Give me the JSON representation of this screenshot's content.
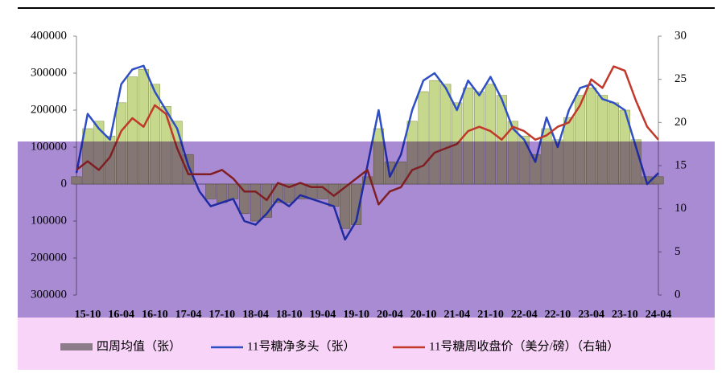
{
  "chart_data": {
    "type": "bar-line",
    "categories": [
      "15-10",
      null,
      null,
      "16-04",
      null,
      null,
      "16-10",
      null,
      null,
      "17-04",
      null,
      null,
      "17-10",
      null,
      null,
      "18-04",
      null,
      null,
      "18-10",
      null,
      null,
      "19-04",
      null,
      null,
      "19-10",
      null,
      null,
      "20-04",
      null,
      null,
      "20-10",
      null,
      null,
      "21-04",
      null,
      null,
      "21-10",
      null,
      null,
      "22-04",
      null,
      null,
      "22-10",
      null,
      null,
      "23-04",
      null,
      null,
      "23-10",
      null,
      null,
      "24-04",
      null
    ],
    "series": [
      {
        "name": "四周均值（张）",
        "type": "bar",
        "color": "#c5d88c",
        "axis": "y",
        "values": [
          20000,
          150000,
          170000,
          130000,
          220000,
          290000,
          310000,
          270000,
          210000,
          170000,
          80000,
          0,
          -40000,
          -50000,
          -40000,
          -80000,
          -100000,
          -90000,
          -50000,
          -50000,
          -40000,
          -40000,
          -40000,
          -60000,
          -120000,
          -110000,
          20000,
          150000,
          60000,
          60000,
          170000,
          250000,
          280000,
          270000,
          220000,
          260000,
          250000,
          270000,
          240000,
          170000,
          130000,
          80000,
          150000,
          120000,
          180000,
          240000,
          260000,
          240000,
          220000,
          200000,
          120000,
          20000,
          20000
        ]
      },
      {
        "name": "11号糖净多头（张）",
        "type": "line",
        "color": "#2f4fc4",
        "axis": "y",
        "values": [
          30000,
          190000,
          150000,
          120000,
          270000,
          310000,
          320000,
          250000,
          200000,
          150000,
          50000,
          -20000,
          -60000,
          -50000,
          -40000,
          -100000,
          -110000,
          -80000,
          -40000,
          -60000,
          -30000,
          -40000,
          -50000,
          -60000,
          -150000,
          -100000,
          50000,
          200000,
          20000,
          80000,
          200000,
          280000,
          300000,
          260000,
          200000,
          280000,
          240000,
          290000,
          230000,
          150000,
          120000,
          60000,
          180000,
          100000,
          200000,
          260000,
          270000,
          230000,
          220000,
          200000,
          100000,
          0,
          30000
        ]
      },
      {
        "name": "11号糖周收盘价（美分/磅）（右轴）",
        "type": "line",
        "color": "#c0392b",
        "axis": "y2",
        "values": [
          14.5,
          15.5,
          14.5,
          16,
          19,
          20.5,
          19.5,
          22,
          21,
          17,
          14,
          14,
          14,
          14.5,
          13.5,
          12,
          12,
          11,
          13,
          12.5,
          13,
          12.5,
          12.5,
          11.5,
          12.5,
          13.5,
          14.5,
          10.5,
          12,
          12.5,
          14.5,
          15,
          16.5,
          17,
          17.5,
          19,
          19.5,
          19,
          18,
          19.5,
          19,
          18,
          18.5,
          19.5,
          20,
          22,
          25,
          24,
          26.5,
          26,
          22.5,
          19.5,
          18
        ]
      }
    ],
    "ylim": [
      -300000,
      400000
    ],
    "yticks": [
      {
        "value": -300000,
        "label": "300000"
      },
      {
        "value": -200000,
        "label": "200000"
      },
      {
        "value": -100000,
        "label": "100000"
      },
      0,
      100000,
      200000,
      300000,
      400000
    ],
    "y2lim": [
      0,
      30
    ],
    "y2ticks": [
      0,
      5,
      10,
      15,
      20,
      25,
      30
    ]
  }
}
